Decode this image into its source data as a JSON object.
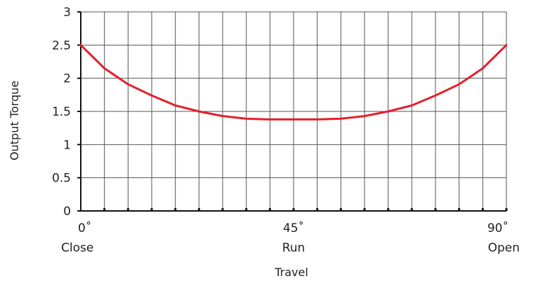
{
  "chart_data": {
    "type": "line",
    "title": "",
    "xlabel": "Travel",
    "ylabel": "Output Torque",
    "ylim": [
      0,
      3
    ],
    "xlim": [
      0,
      90
    ],
    "grid": true,
    "y_ticks": [
      {
        "value": 0,
        "label": "0"
      },
      {
        "value": 0.5,
        "label": "0.5"
      },
      {
        "value": 1,
        "label": "1"
      },
      {
        "value": 1.5,
        "label": "1.5"
      },
      {
        "value": 2,
        "label": "2"
      },
      {
        "value": 2.5,
        "label": "2.5"
      },
      {
        "value": 3,
        "label": "3"
      }
    ],
    "x_ticks": [
      {
        "value": 0,
        "label": "0˚",
        "sublabel": "Close"
      },
      {
        "value": 45,
        "label": "45˚",
        "sublabel": "Run"
      },
      {
        "value": 90,
        "label": "90˚",
        "sublabel": "Open"
      }
    ],
    "series": [
      {
        "color": "#e3202b",
        "x": [
          0,
          5,
          10,
          15,
          20,
          25,
          30,
          35,
          40,
          45,
          50,
          55,
          60,
          65,
          70,
          75,
          80,
          85,
          90
        ],
        "y": [
          2.5,
          2.15,
          1.91,
          1.74,
          1.59,
          1.5,
          1.43,
          1.39,
          1.38,
          1.38,
          1.38,
          1.39,
          1.43,
          1.5,
          1.59,
          1.74,
          1.91,
          2.15,
          2.5
        ]
      }
    ]
  }
}
